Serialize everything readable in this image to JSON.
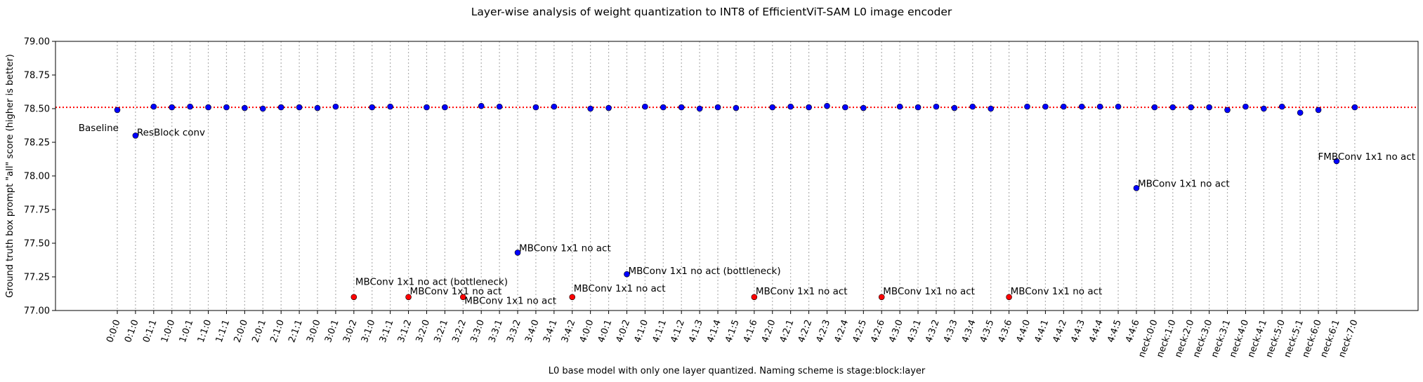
{
  "chart_data": {
    "type": "scatter",
    "title": "Layer-wise analysis of weight quantization to INT8 of EfficientViT-SAM L0 image encoder",
    "xlabel": "L0 base model with only one layer quantized. Naming scheme is stage:block:layer",
    "ylabel": "Ground truth box prompt \"all\" score (higher is better)",
    "ylim": [
      77.0,
      79.0
    ],
    "yticks": [
      "77.00",
      "77.25",
      "77.50",
      "77.75",
      "78.00",
      "78.25",
      "78.50",
      "78.75",
      "79.00"
    ],
    "grid": "vertical dotted at each x tick",
    "baseline": {
      "value": 78.51,
      "label": "Baseline",
      "color": "#ff0000",
      "style": "dotted"
    },
    "colors": {
      "normal": "#0000ff",
      "clipped": "#ff0000"
    },
    "categories": [
      "0:0:0",
      "0:1:0",
      "0:1:1",
      "1:0:0",
      "1:0:1",
      "1:1:0",
      "1:1:1",
      "2:0:0",
      "2:0:1",
      "2:1:0",
      "2:1:1",
      "3:0:0",
      "3:0:1",
      "3:0:2",
      "3:1:0",
      "3:1:1",
      "3:1:2",
      "3:2:0",
      "3:2:1",
      "3:2:2",
      "3:3:0",
      "3:3:1",
      "3:3:2",
      "3:4:0",
      "3:4:1",
      "3:4:2",
      "4:0:0",
      "4:0:1",
      "4:0:2",
      "4:1:0",
      "4:1:1",
      "4:1:2",
      "4:1:3",
      "4:1:4",
      "4:1:5",
      "4:1:6",
      "4:2:0",
      "4:2:1",
      "4:2:2",
      "4:2:3",
      "4:2:4",
      "4:2:5",
      "4:2:6",
      "4:3:0",
      "4:3:1",
      "4:3:2",
      "4:3:3",
      "4:3:4",
      "4:3:5",
      "4:3:6",
      "4:4:0",
      "4:4:1",
      "4:4:2",
      "4:4:3",
      "4:4:4",
      "4:4:5",
      "4:4:6",
      "neck:0:0",
      "neck:1:0",
      "neck:2:0",
      "neck:3:0",
      "neck:3:1",
      "neck:4:0",
      "neck:4:1",
      "neck:5:0",
      "neck:5:1",
      "neck:6:0",
      "neck:6:1",
      "neck:7:0"
    ],
    "series": [
      {
        "values": [
          78.49,
          78.3,
          78.515,
          78.51,
          78.515,
          78.51,
          78.51,
          78.505,
          78.5,
          78.51,
          78.51,
          78.505,
          78.515,
          77.1,
          78.51,
          78.515,
          77.1,
          78.51,
          78.51,
          77.1,
          78.52,
          78.515,
          77.43,
          78.51,
          78.515,
          77.1,
          78.5,
          78.505,
          77.27,
          78.515,
          78.51,
          78.51,
          78.5,
          78.51,
          78.505,
          77.1,
          78.51,
          78.515,
          78.51,
          78.52,
          78.51,
          78.505,
          77.1,
          78.515,
          78.51,
          78.515,
          78.505,
          78.515,
          78.5,
          77.1,
          78.515,
          78.515,
          78.515,
          78.515,
          78.515,
          78.515,
          77.91,
          78.51,
          78.51,
          78.51,
          78.51,
          78.49,
          78.515,
          78.5,
          78.515,
          78.47,
          78.49,
          78.11,
          78.51
        ],
        "clipped": [
          13,
          16,
          19,
          25,
          35,
          42,
          49
        ]
      }
    ],
    "annotations": [
      {
        "text": "Baseline",
        "x": "0:0:0",
        "y": 78.36
      },
      {
        "text": "ResBlock conv",
        "x": "0:1:0",
        "y": 78.3
      },
      {
        "text": "MBConv 1x1 no act (bottleneck)",
        "x": "3:0:2",
        "y": 77.19
      },
      {
        "text": "MBConv 1x1 no act",
        "x": "3:1:2",
        "y": 77.12
      },
      {
        "text": "MBConv 1x1 no act",
        "x": "3:2:2",
        "y": 77.05
      },
      {
        "text": "MBConv 1x1 no act",
        "x": "3:3:2",
        "y": 77.44
      },
      {
        "text": "MBConv 1x1 no act",
        "x": "3:4:2",
        "y": 77.14
      },
      {
        "text": "MBConv 1x1 no act (bottleneck)",
        "x": "4:0:2",
        "y": 77.27
      },
      {
        "text": "MBConv 1x1 no act",
        "x": "4:1:6",
        "y": 77.12
      },
      {
        "text": "MBConv 1x1 no act",
        "x": "4:2:6",
        "y": 77.12
      },
      {
        "text": "MBConv 1x1 no act",
        "x": "4:3:6",
        "y": 77.12
      },
      {
        "text": "MBConv 1x1 no act",
        "x": "4:4:6",
        "y": 77.92
      },
      {
        "text": "FMBConv 1x1 no act",
        "x": "neck:6:1",
        "y": 78.12
      }
    ]
  }
}
